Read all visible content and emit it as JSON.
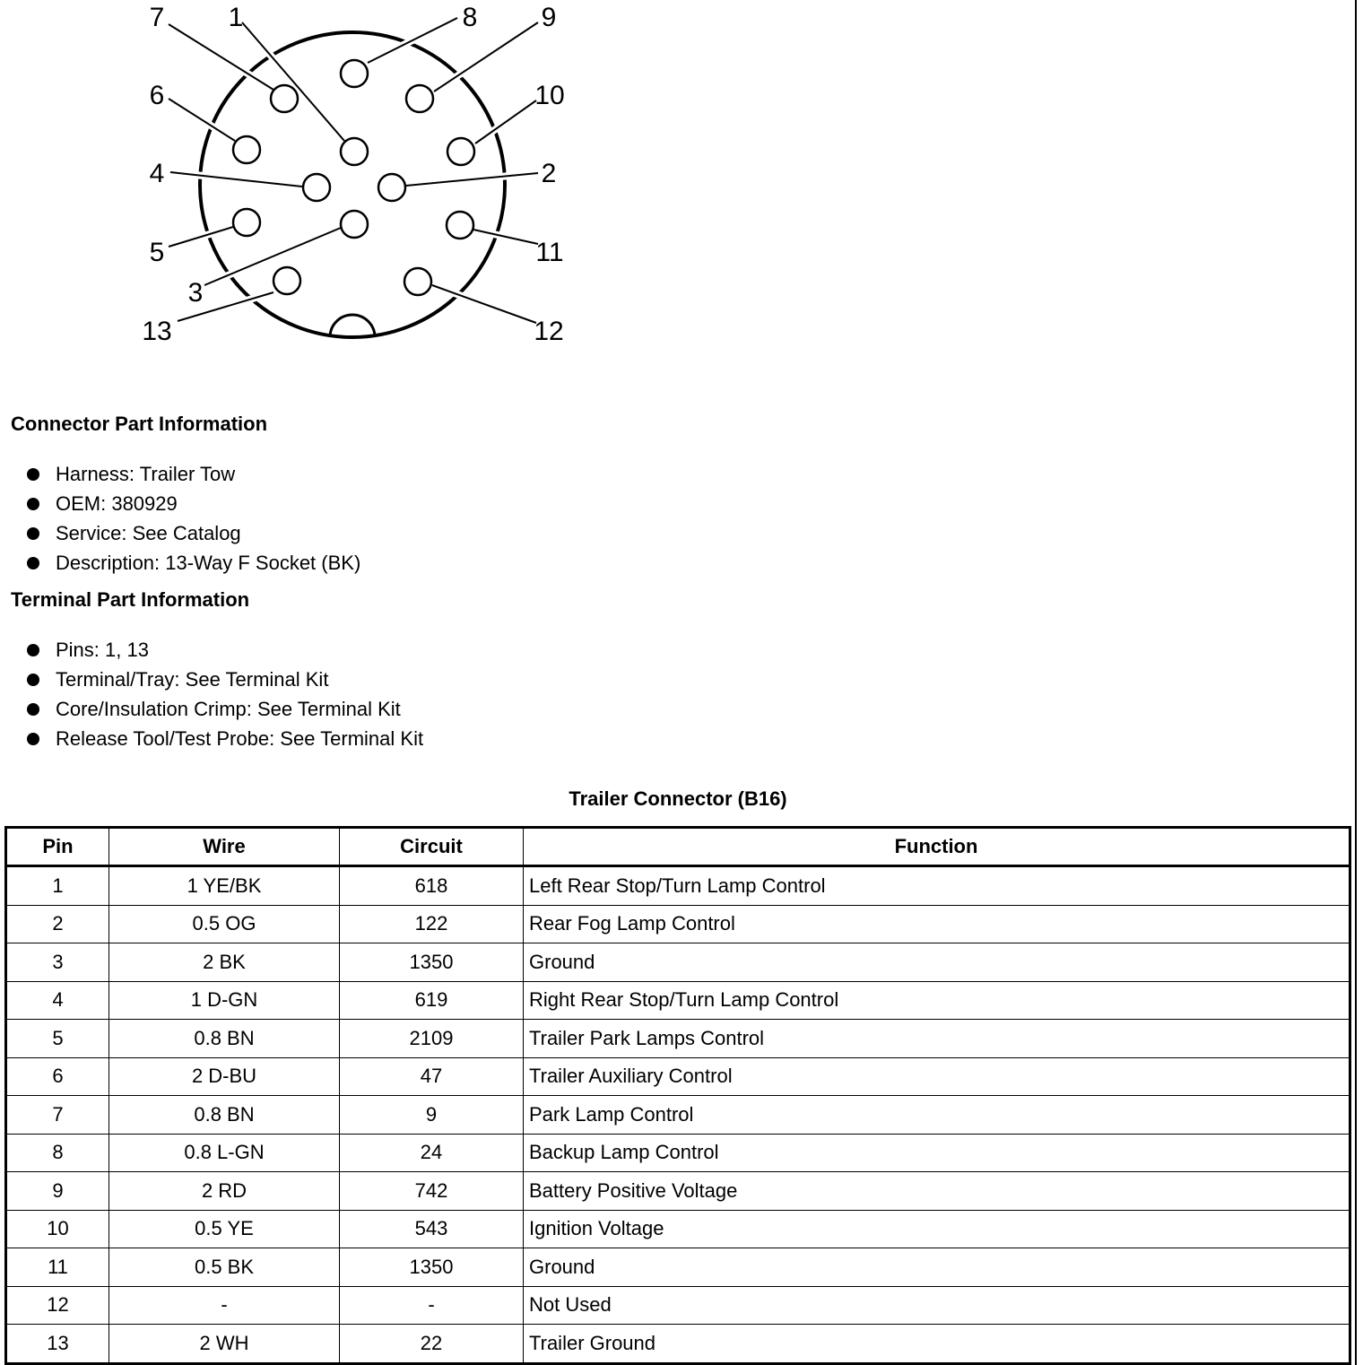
{
  "diagram": {
    "pin_labels": [
      "1",
      "2",
      "3",
      "4",
      "5",
      "6",
      "7",
      "8",
      "9",
      "10",
      "11",
      "12",
      "13"
    ]
  },
  "connector_info": {
    "heading": "Connector Part Information",
    "items": [
      "Harness: Trailer Tow",
      "OEM: 380929",
      "Service: See Catalog",
      "Description: 13-Way F Socket (BK)"
    ]
  },
  "terminal_info": {
    "heading": "Terminal Part Information",
    "items": [
      "Pins: 1, 13",
      "Terminal/Tray: See Terminal Kit",
      "Core/Insulation Crimp: See Terminal Kit",
      "Release Tool/Test Probe: See Terminal Kit"
    ]
  },
  "table": {
    "caption": "Trailer Connector (B16)",
    "headers": [
      "Pin",
      "Wire",
      "Circuit",
      "Function"
    ],
    "rows": [
      [
        "1",
        "1 YE/BK",
        "618",
        "Left Rear Stop/Turn Lamp Control"
      ],
      [
        "2",
        "0.5 OG",
        "122",
        "Rear Fog Lamp Control"
      ],
      [
        "3",
        "2 BK",
        "1350",
        "Ground"
      ],
      [
        "4",
        "1 D-GN",
        "619",
        "Right Rear Stop/Turn Lamp Control"
      ],
      [
        "5",
        "0.8 BN",
        "2109",
        "Trailer Park Lamps Control"
      ],
      [
        "6",
        "2 D-BU",
        "47",
        "Trailer Auxiliary Control"
      ],
      [
        "7",
        "0.8 BN",
        "9",
        "Park Lamp Control"
      ],
      [
        "8",
        "0.8 L-GN",
        "24",
        "Backup Lamp Control"
      ],
      [
        "9",
        "2 RD",
        "742",
        "Battery Positive Voltage"
      ],
      [
        "10",
        "0.5 YE",
        "543",
        "Ignition Voltage"
      ],
      [
        "11",
        "0.5 BK",
        "1350",
        "Ground"
      ],
      [
        "12",
        "-",
        "-",
        "Not Used"
      ],
      [
        "13",
        "2 WH",
        "22",
        "Trailer Ground"
      ]
    ]
  }
}
